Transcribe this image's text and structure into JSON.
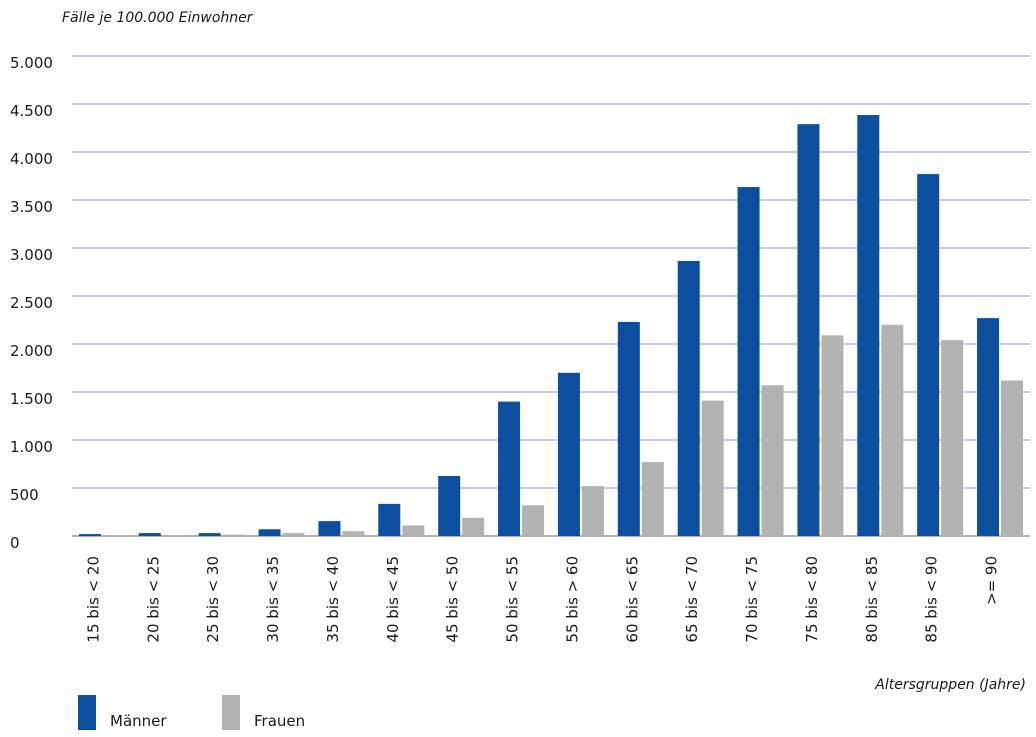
{
  "chart_data": {
    "type": "bar",
    "title": "Fälle je 100.000 Einwohner",
    "x_label": "Altersgruppen (Jahre)",
    "categories": [
      "15 bis < 20",
      "20 bis < 25",
      "25 bis < 30",
      "30 bis < 35",
      "35 bis < 40",
      "40 bis < 45",
      "45 bis < 50",
      "50 bis < 55",
      "55 bis > 60",
      "60 bis < 65",
      "65 bis < 70",
      "70 bis < 75",
      "75 bis < 80",
      "80 bis < 85",
      "85 bis < 90",
      ">= 90"
    ],
    "series": [
      {
        "name": "Männer",
        "color": "#0b4f9e",
        "values": [
          20,
          30,
          30,
          70,
          155,
          335,
          625,
          1400,
          1700,
          2230,
          2865,
          3635,
          4290,
          4385,
          3770,
          2270
        ]
      },
      {
        "name": "Frauen",
        "color": "#b2b2b2",
        "values": [
          10,
          10,
          15,
          30,
          50,
          110,
          190,
          320,
          520,
          770,
          1410,
          1570,
          2090,
          2200,
          2040,
          1620
        ]
      }
    ],
    "ylim": [
      0,
      5000
    ],
    "yticks": [
      0,
      500,
      {
        "value": 1000,
        "label": "1.000"
      },
      {
        "value": 1500,
        "label": "1.500"
      },
      {
        "value": 2000,
        "label": "2.000"
      },
      {
        "value": 2500,
        "label": "2.500"
      },
      {
        "value": 3000,
        "label": "3.000"
      },
      {
        "value": 3500,
        "label": "3.500"
      },
      {
        "value": 4000,
        "label": "4.000"
      },
      {
        "value": 4500,
        "label": "4.500"
      },
      {
        "value": 5000,
        "label": "5.000"
      }
    ],
    "grid": true
  }
}
